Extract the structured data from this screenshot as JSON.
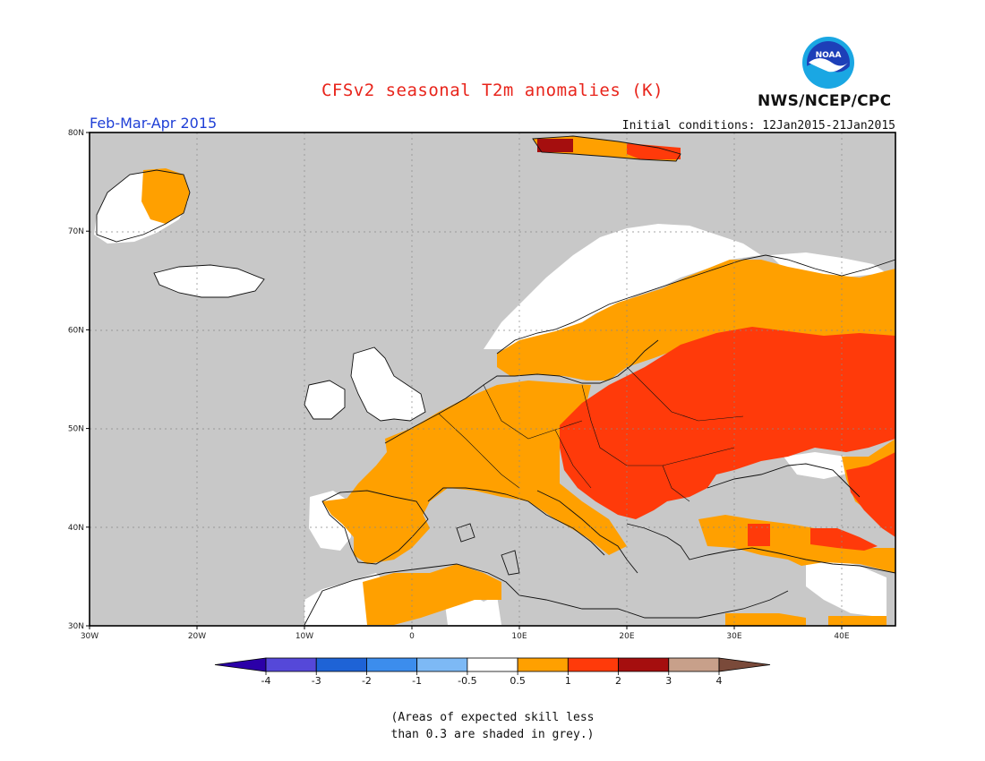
{
  "title": "CFSv2 seasonal T2m anomalies (K)",
  "period": "Feb-Mar-Apr 2015",
  "initial_conditions": "Initial conditions: 12Jan2015-21Jan2015",
  "agency": "NWS/NCEP/CPC",
  "logo_text": "NOAA",
  "lat_ticks": [
    "30N",
    "40N",
    "50N",
    "60N",
    "70N",
    "80N"
  ],
  "lon_ticks": [
    "30W",
    "20W",
    "10W",
    "0",
    "10E",
    "20E",
    "30E",
    "40E"
  ],
  "colorbar": {
    "labels": [
      "-4",
      "-3",
      "-2",
      "-1",
      "-0.5",
      "0.5",
      "1",
      "2",
      "3",
      "4"
    ],
    "colors": [
      "#2b00a8",
      "#5548d9",
      "#1e63d6",
      "#3c8ded",
      "#7db9f5",
      "#ffffff",
      "#ffa000",
      "#ff3a0a",
      "#a50e0e",
      "#c8a08a",
      "#7a4a3a"
    ]
  },
  "colors": {
    "grey": "#c8c8c8",
    "land_white": "#ffffff",
    "coast": "#111111"
  },
  "note_line1": "(Areas of expected skill less",
  "note_line2": "than 0.3 are shaded in grey.)"
}
